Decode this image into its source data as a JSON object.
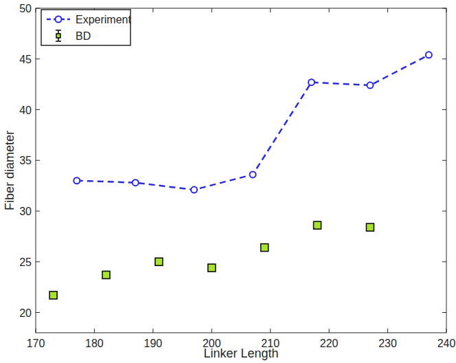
{
  "chart_data": {
    "type": "line",
    "x_label": "Linker Length",
    "y_label": "Fiber diameter",
    "xlim": [
      170,
      240
    ],
    "xticks": [
      170,
      180,
      190,
      200,
      210,
      220,
      230,
      240
    ],
    "ylim": [
      18,
      50
    ],
    "yticks": [
      20,
      25,
      30,
      35,
      40,
      45,
      50
    ],
    "grid": false,
    "legend": "top-left",
    "series": [
      {
        "name": "Experiment",
        "type": "line",
        "color": "#2b2bdc",
        "marker": "circle",
        "line_style": "dashed",
        "x": [
          177,
          187,
          197,
          207,
          217,
          227,
          237
        ],
        "values": [
          33.0,
          32.8,
          32.1,
          33.6,
          42.7,
          42.4,
          45.4
        ]
      },
      {
        "name": "BD",
        "type": "scatter",
        "color": "#a6e22e",
        "marker": "square",
        "x": [
          173,
          182,
          191,
          200,
          209,
          218,
          227
        ],
        "values": [
          21.7,
          23.7,
          25.0,
          24.4,
          26.4,
          28.6,
          28.4
        ],
        "errors": [
          0.2,
          0.2,
          0.2,
          0.2,
          0.2,
          0.2,
          0.2
        ]
      }
    ]
  }
}
